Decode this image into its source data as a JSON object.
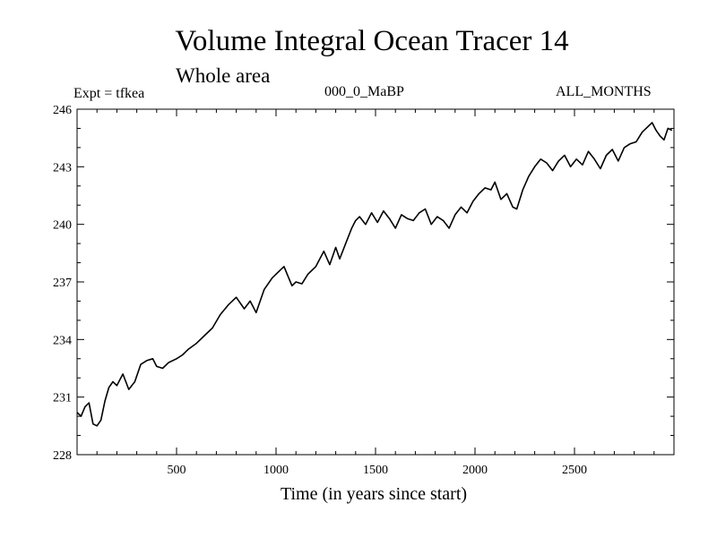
{
  "chart_data": {
    "type": "line",
    "title": "Volume Integral Ocean Tracer 14",
    "subtitle": "Whole area",
    "annotations": {
      "left": "Expt = tfkea",
      "center": "000_0_MaBP",
      "right": "ALL_MONTHS"
    },
    "xlabel": "Time (in years since start)",
    "ylabel": "",
    "xlim": [
      0,
      3000
    ],
    "ylim": [
      228,
      246
    ],
    "xticks": [
      500,
      1000,
      1500,
      2000,
      2500
    ],
    "yticks": [
      228,
      231,
      234,
      237,
      240,
      243,
      246
    ],
    "line_color": "#000000",
    "grid": false,
    "series": [
      {
        "x": [
          0,
          20,
          40,
          60,
          80,
          100,
          120,
          140,
          160,
          180,
          200,
          230,
          260,
          290,
          320,
          350,
          380,
          400,
          430,
          460,
          500,
          530,
          560,
          600,
          640,
          680,
          720,
          760,
          800,
          840,
          870,
          900,
          940,
          980,
          1020,
          1040,
          1060,
          1080,
          1100,
          1130,
          1160,
          1200,
          1240,
          1270,
          1300,
          1320,
          1350,
          1380,
          1400,
          1420,
          1450,
          1480,
          1510,
          1540,
          1570,
          1600,
          1630,
          1660,
          1690,
          1720,
          1750,
          1780,
          1810,
          1840,
          1870,
          1900,
          1930,
          1960,
          1990,
          2020,
          2050,
          2080,
          2100,
          2130,
          2160,
          2190,
          2210,
          2240,
          2270,
          2300,
          2330,
          2360,
          2390,
          2420,
          2450,
          2480,
          2510,
          2540,
          2570,
          2600,
          2630,
          2660,
          2690,
          2720,
          2750,
          2780,
          2810,
          2840,
          2870,
          2890,
          2910,
          2930,
          2950,
          2970,
          2990
        ],
        "y": [
          230.2,
          230.0,
          230.5,
          230.7,
          229.6,
          229.5,
          229.8,
          230.8,
          231.5,
          231.8,
          231.6,
          232.2,
          231.4,
          231.8,
          232.7,
          232.9,
          233.0,
          232.6,
          232.5,
          232.8,
          233.0,
          233.2,
          233.5,
          233.8,
          234.2,
          234.6,
          235.3,
          235.8,
          236.2,
          235.6,
          236.0,
          235.4,
          236.6,
          237.2,
          237.6,
          237.8,
          237.3,
          236.8,
          237.0,
          236.9,
          237.4,
          237.8,
          238.6,
          237.9,
          238.8,
          238.2,
          239.0,
          239.8,
          240.2,
          240.4,
          240.0,
          240.6,
          240.1,
          240.7,
          240.3,
          239.8,
          240.5,
          240.3,
          240.2,
          240.6,
          240.8,
          240.0,
          240.4,
          240.2,
          239.8,
          240.5,
          240.9,
          240.6,
          241.2,
          241.6,
          241.9,
          241.8,
          242.2,
          241.3,
          241.6,
          240.9,
          240.8,
          241.8,
          242.5,
          243.0,
          243.4,
          243.2,
          242.8,
          243.3,
          243.6,
          243.0,
          243.4,
          243.1,
          243.8,
          243.4,
          242.9,
          243.6,
          243.9,
          243.3,
          244.0,
          244.2,
          244.3,
          244.8,
          245.1,
          245.3,
          244.9,
          244.6,
          244.4,
          245.0,
          244.9
        ]
      }
    ]
  }
}
